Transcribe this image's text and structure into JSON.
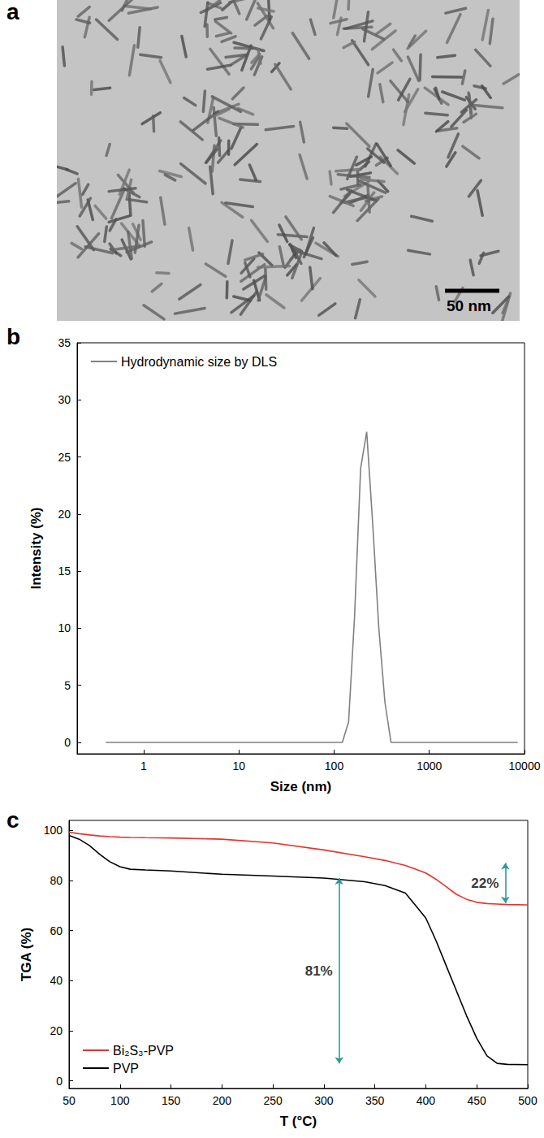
{
  "image_panel": {
    "panel": "a",
    "scale_bar": "50 nm"
  },
  "chart_data": [
    {
      "panel": "b",
      "type": "line",
      "x_label": "Size (nm)",
      "y_label": "Intensity (%)",
      "log": "x",
      "grid": false,
      "legend": "upper left",
      "xlim": [
        0.2,
        10000
      ],
      "xticks": [
        1,
        10,
        100,
        1000,
        10000
      ],
      "ylim": [
        -1,
        35
      ],
      "yticks": [
        0,
        5,
        10,
        15,
        20,
        25,
        30,
        35
      ],
      "x": [
        0.4,
        1,
        10,
        100,
        122,
        142,
        164,
        190,
        220,
        255,
        295,
        342,
        396,
        1000,
        8500
      ],
      "series": [
        {
          "name": "Hydrodynamic size by DLS",
          "color": "#808080",
          "values": [
            0,
            0,
            0,
            0,
            0,
            1.8,
            11,
            24,
            27.2,
            19,
            10,
            3.5,
            0,
            0,
            0
          ]
        }
      ]
    },
    {
      "panel": "c",
      "type": "line",
      "x_label": "T (°C)",
      "y_label": "TGA (%)",
      "grid": false,
      "legend": "lower left",
      "xlim": [
        50,
        500
      ],
      "xticks": [
        50,
        100,
        150,
        200,
        250,
        300,
        350,
        400,
        450,
        500
      ],
      "ylim": [
        -3,
        104
      ],
      "yticks": [
        0,
        20,
        40,
        60,
        80,
        100
      ],
      "x": [
        50,
        60,
        70,
        80,
        90,
        100,
        110,
        125,
        150,
        200,
        250,
        300,
        340,
        360,
        380,
        400,
        410,
        420,
        430,
        440,
        450,
        460,
        470,
        480,
        500
      ],
      "series": [
        {
          "name": "Bi₂S₃-PVP",
          "color": "#e8322e",
          "values": [
            99.3,
            98.7,
            98.2,
            97.8,
            97.5,
            97.3,
            97.2,
            97.1,
            97,
            96.5,
            95,
            92.2,
            89.5,
            88,
            86,
            83,
            80.5,
            77.5,
            74.5,
            72.5,
            71.3,
            70.8,
            70.6,
            70.4,
            70.3
          ]
        },
        {
          "name": "PVP",
          "color": "#000000",
          "values": [
            98,
            96.5,
            94,
            90.5,
            87.5,
            85.5,
            84.5,
            84.2,
            83.8,
            82.5,
            81.8,
            81,
            79.5,
            78,
            75,
            65,
            56,
            46,
            36,
            26,
            17,
            10,
            7,
            6.6,
            6.5
          ]
        }
      ],
      "annotations": [
        {
          "text": "22%",
          "x": 478,
          "y_from": 87,
          "y_to": 71,
          "color": "#2a9a9a"
        },
        {
          "text": "81%",
          "x": 315,
          "y_from": 81,
          "y_to": 7,
          "color": "#2a9a9a"
        }
      ]
    }
  ]
}
